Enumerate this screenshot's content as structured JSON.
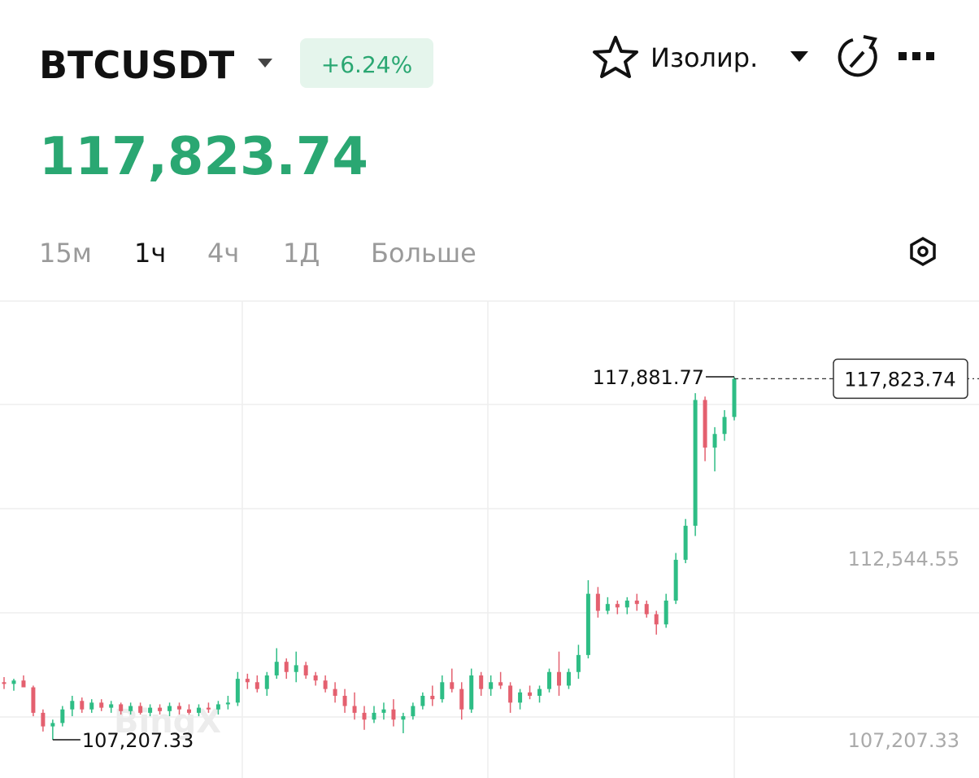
{
  "header": {
    "symbol": "BTCUSDT",
    "change": "+6.24%",
    "price": "117,823.74",
    "margin_mode": "Изолир."
  },
  "timeframes": {
    "items": [
      "15м",
      "1ч",
      "4ч",
      "1Д",
      "Больше"
    ],
    "active": 1
  },
  "chart_data": {
    "type": "candlestick",
    "watermark": "BingX",
    "up_color": "#2ebd85",
    "down_color": "#e4606f",
    "ylim": [
      106083,
      120107
    ],
    "yticks": [
      {
        "value": 107207.33,
        "label": "107,207.33"
      },
      {
        "value": 112544.55,
        "label": "112,544.55"
      }
    ],
    "last_price": {
      "value": 117823.74,
      "label": "117,823.74"
    },
    "high_label": {
      "value": 117881.77,
      "label": "117,881.77"
    },
    "low_label": {
      "value": 107207.33,
      "label": "107,207.33"
    },
    "open": [
      108900,
      108850,
      108950,
      108750,
      108000,
      107600,
      107700,
      108100,
      108350,
      108100,
      108300,
      108150,
      108250,
      108050,
      108200,
      108000,
      108150,
      108050,
      108200,
      108100,
      108000,
      108150,
      108100,
      108250,
      108300,
      109000,
      108900,
      108700,
      109100,
      109500,
      109200,
      109400,
      109100,
      108950,
      108700,
      108500,
      108200,
      108000,
      107800,
      108000,
      108100,
      107800,
      107900,
      108200,
      108500,
      108400,
      108900,
      108700,
      108100,
      109100,
      108700,
      108900,
      108800,
      108300,
      108600,
      108500,
      108700,
      109200,
      108800,
      109200,
      109700,
      111500,
      111000,
      111200,
      111100,
      111300,
      111200,
      110900,
      110600,
      111300,
      112500,
      113500,
      117200,
      115800,
      116200,
      116700
    ],
    "high": [
      109050,
      109000,
      109100,
      108800,
      108100,
      107800,
      108200,
      108500,
      108450,
      108400,
      108400,
      108350,
      108300,
      108300,
      108300,
      108250,
      108250,
      108300,
      108300,
      108250,
      108250,
      108300,
      108350,
      108500,
      109200,
      109150,
      109100,
      109200,
      109900,
      109600,
      109800,
      109500,
      109200,
      109100,
      108900,
      108700,
      108600,
      108200,
      108200,
      108300,
      108400,
      108000,
      108300,
      108600,
      108800,
      109100,
      109300,
      108900,
      109300,
      109200,
      109100,
      109200,
      108900,
      108700,
      108800,
      108800,
      109300,
      109800,
      109300,
      110000,
      111900,
      111700,
      111400,
      111300,
      111400,
      111500,
      111300,
      111000,
      111500,
      112700,
      113700,
      117400,
      117300,
      116400,
      116900,
      117881.77
    ],
    "low": [
      108700,
      108650,
      108800,
      107900,
      107450,
      107207.33,
      107600,
      107900,
      108000,
      108000,
      108050,
      108000,
      107950,
      107950,
      107950,
      107900,
      107950,
      107900,
      107950,
      107950,
      107900,
      108000,
      107950,
      108100,
      108200,
      108700,
      108600,
      108500,
      109000,
      109000,
      108900,
      109000,
      108800,
      108600,
      108300,
      108000,
      107800,
      107500,
      107700,
      107800,
      107600,
      107400,
      107800,
      108100,
      108200,
      108300,
      108600,
      107800,
      108000,
      108500,
      108500,
      108700,
      108000,
      108100,
      108400,
      108300,
      108600,
      108500,
      108700,
      109000,
      109600,
      110800,
      110900,
      110900,
      110900,
      111000,
      110800,
      110300,
      110500,
      111200,
      112400,
      113200,
      115400,
      115100,
      116000,
      116600
    ],
    "close": [
      108850,
      108950,
      108750,
      108000,
      107600,
      107700,
      108100,
      108350,
      108100,
      108300,
      108150,
      108250,
      108050,
      108200,
      108000,
      108150,
      108050,
      108200,
      108100,
      108000,
      108150,
      108100,
      108250,
      108300,
      109000,
      108900,
      108700,
      109100,
      109500,
      109200,
      109400,
      109100,
      108950,
      108700,
      108500,
      108200,
      108000,
      107800,
      108000,
      108100,
      107800,
      107900,
      108200,
      108500,
      108400,
      108900,
      108700,
      108100,
      109100,
      108700,
      108900,
      108800,
      108300,
      108600,
      108500,
      108700,
      109200,
      108800,
      109200,
      109700,
      111500,
      111000,
      111200,
      111100,
      111300,
      111200,
      110900,
      110600,
      111300,
      112500,
      113500,
      117200,
      115800,
      116200,
      116700,
      117823.74
    ]
  }
}
